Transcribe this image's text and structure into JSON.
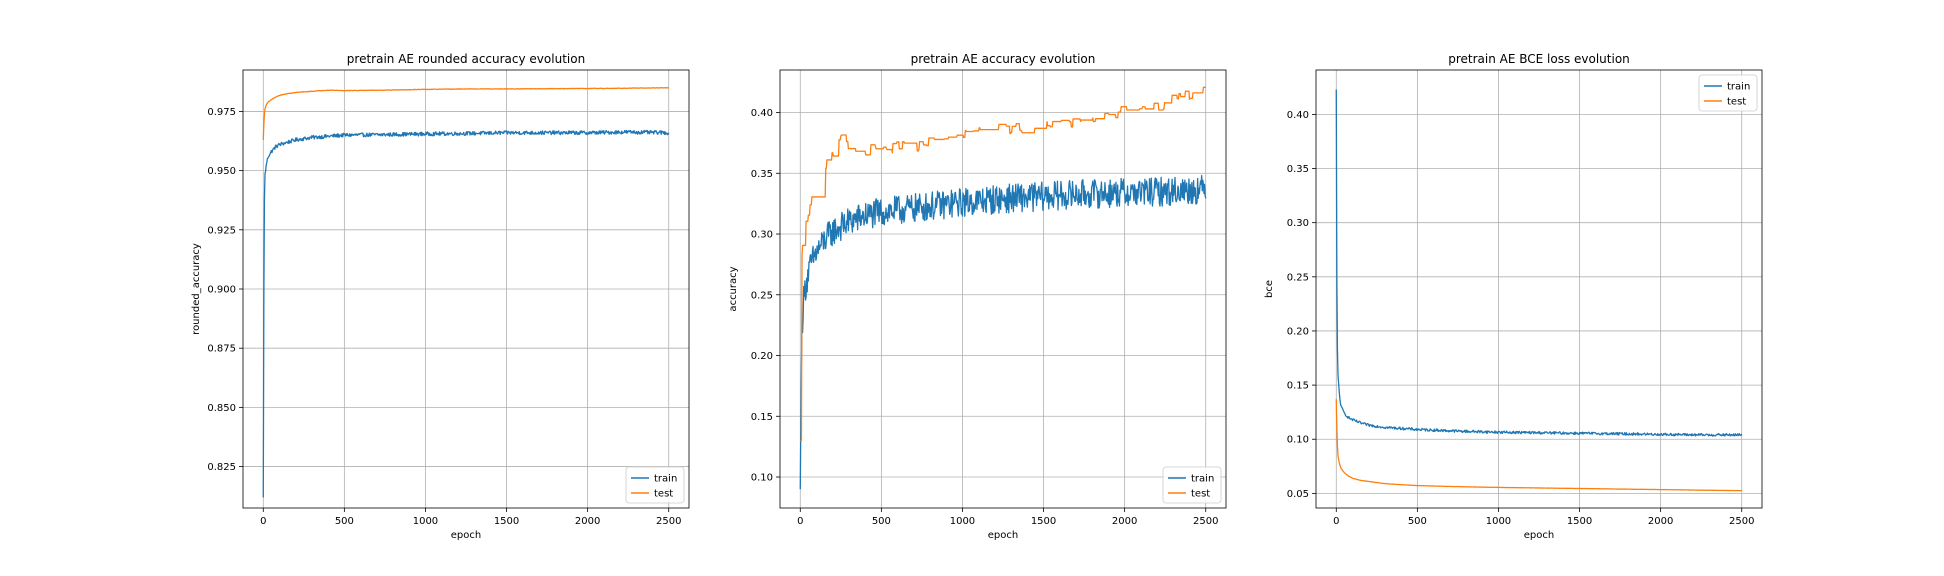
{
  "figure": {
    "background": "#ffffff"
  },
  "colors": {
    "train": "#1f77b4",
    "test": "#ff7f0e",
    "grid": "#b0b0b0"
  },
  "chart_data": [
    {
      "type": "line",
      "title": "pretrain AE rounded accuracy evolution",
      "xlabel": "epoch",
      "ylabel": "rounded_accuracy",
      "xlim": [
        -125,
        2625
      ],
      "ylim": [
        0.8075,
        0.9925
      ],
      "xticks": [
        0,
        500,
        1000,
        1500,
        2000,
        2500
      ],
      "xtick_labels": [
        "0",
        "500",
        "1000",
        "1500",
        "2000",
        "2500"
      ],
      "yticks": [
        0.825,
        0.85,
        0.875,
        0.9,
        0.925,
        0.95,
        0.975
      ],
      "ytick_labels": [
        "0.825",
        "0.850",
        "0.875",
        "0.900",
        "0.925",
        "0.950",
        "0.975"
      ],
      "grid": true,
      "legend": "lower right",
      "series": [
        {
          "name": "train",
          "color": "#1f77b4",
          "x": [
            0,
            5,
            10,
            20,
            30,
            50,
            75,
            100,
            150,
            200,
            300,
            400,
            500,
            750,
            1000,
            1250,
            1500,
            1750,
            2000,
            2250,
            2500
          ],
          "y": [
            0.812,
            0.93,
            0.948,
            0.953,
            0.956,
            0.958,
            0.96,
            0.961,
            0.962,
            0.963,
            0.964,
            0.9645,
            0.965,
            0.9652,
            0.9655,
            0.9657,
            0.966,
            0.966,
            0.966,
            0.9663,
            0.966
          ],
          "noise": 0.0008
        },
        {
          "name": "test",
          "color": "#ff7f0e",
          "x": [
            0,
            5,
            10,
            20,
            30,
            50,
            75,
            100,
            150,
            200,
            300,
            400,
            500,
            750,
            1000,
            1250,
            1500,
            1750,
            2000,
            2250,
            2500
          ],
          "y": [
            0.963,
            0.972,
            0.976,
            0.978,
            0.979,
            0.98,
            0.981,
            0.9818,
            0.9825,
            0.983,
            0.9835,
            0.984,
            0.9838,
            0.984,
            0.9843,
            0.9845,
            0.9845,
            0.9846,
            0.9847,
            0.9848,
            0.985
          ],
          "noise": 0.0001
        }
      ]
    },
    {
      "type": "line",
      "title": "pretrain AE accuracy evolution",
      "xlabel": "epoch",
      "ylabel": "accuracy",
      "xlim": [
        -125,
        2625
      ],
      "ylim": [
        0.0745,
        0.435
      ],
      "xticks": [
        0,
        500,
        1000,
        1500,
        2000,
        2500
      ],
      "xtick_labels": [
        "0",
        "500",
        "1000",
        "1500",
        "2000",
        "2500"
      ],
      "yticks": [
        0.1,
        0.15,
        0.2,
        0.25,
        0.3,
        0.35,
        0.4
      ],
      "ytick_labels": [
        "0.10",
        "0.15",
        "0.20",
        "0.25",
        "0.30",
        "0.35",
        "0.40"
      ],
      "grid": true,
      "legend": "lower right",
      "series": [
        {
          "name": "train",
          "color": "#1f77b4",
          "x": [
            0,
            5,
            10,
            20,
            30,
            50,
            75,
            100,
            150,
            200,
            300,
            400,
            500,
            750,
            1000,
            1250,
            1500,
            1750,
            2000,
            2250,
            2500
          ],
          "y": [
            0.09,
            0.17,
            0.22,
            0.245,
            0.255,
            0.268,
            0.278,
            0.285,
            0.295,
            0.302,
            0.31,
            0.315,
            0.318,
            0.322,
            0.326,
            0.329,
            0.331,
            0.333,
            0.334,
            0.335,
            0.337
          ],
          "noise": 0.012
        },
        {
          "name": "test",
          "color": "#ff7f0e",
          "x": [
            0,
            5,
            10,
            20,
            30,
            50,
            75,
            100,
            150,
            200,
            250,
            300,
            400,
            500,
            700,
            900,
            1000,
            1200,
            1500,
            1700,
            1900,
            2000,
            2200,
            2300,
            2400,
            2500
          ],
          "y": [
            0.13,
            0.24,
            0.285,
            0.3,
            0.31,
            0.32,
            0.335,
            0.345,
            0.355,
            0.367,
            0.378,
            0.373,
            0.37,
            0.37,
            0.372,
            0.378,
            0.38,
            0.385,
            0.39,
            0.393,
            0.398,
            0.402,
            0.405,
            0.41,
            0.415,
            0.418
          ],
          "noise": 0.005,
          "step": true
        }
      ]
    },
    {
      "type": "line",
      "title": "pretrain AE BCE loss evolution",
      "xlabel": "epoch",
      "ylabel": "bce",
      "xlim": [
        -125,
        2625
      ],
      "ylim": [
        0.0365,
        0.441
      ],
      "xticks": [
        0,
        500,
        1000,
        1500,
        2000,
        2500
      ],
      "xtick_labels": [
        "0",
        "500",
        "1000",
        "1500",
        "2000",
        "2500"
      ],
      "yticks": [
        0.05,
        0.1,
        0.15,
        0.2,
        0.25,
        0.3,
        0.35,
        0.4
      ],
      "ytick_labels": [
        "0.05",
        "0.10",
        "0.15",
        "0.20",
        "0.25",
        "0.30",
        "0.35",
        "0.40"
      ],
      "grid": true,
      "legend": "upper right",
      "series": [
        {
          "name": "train",
          "color": "#1f77b4",
          "x": [
            0,
            2,
            5,
            10,
            20,
            30,
            50,
            75,
            100,
            150,
            200,
            300,
            400,
            500,
            750,
            1000,
            1250,
            1500,
            1750,
            2000,
            2250,
            2500
          ],
          "y": [
            0.423,
            0.3,
            0.2,
            0.16,
            0.14,
            0.13,
            0.124,
            0.12,
            0.118,
            0.115,
            0.113,
            0.111,
            0.11,
            0.109,
            0.1075,
            0.1065,
            0.106,
            0.1055,
            0.105,
            0.1045,
            0.104,
            0.104
          ],
          "noise": 0.0012
        },
        {
          "name": "test",
          "color": "#ff7f0e",
          "x": [
            0,
            5,
            10,
            20,
            30,
            50,
            75,
            100,
            150,
            200,
            300,
            400,
            500,
            750,
            1000,
            1250,
            1500,
            1750,
            2000,
            2250,
            2500
          ],
          "y": [
            0.137,
            0.1,
            0.085,
            0.077,
            0.073,
            0.069,
            0.066,
            0.064,
            0.062,
            0.061,
            0.059,
            0.058,
            0.0572,
            0.0562,
            0.0555,
            0.055,
            0.0545,
            0.054,
            0.0535,
            0.053,
            0.0525
          ],
          "noise": 0.0001
        }
      ]
    }
  ]
}
